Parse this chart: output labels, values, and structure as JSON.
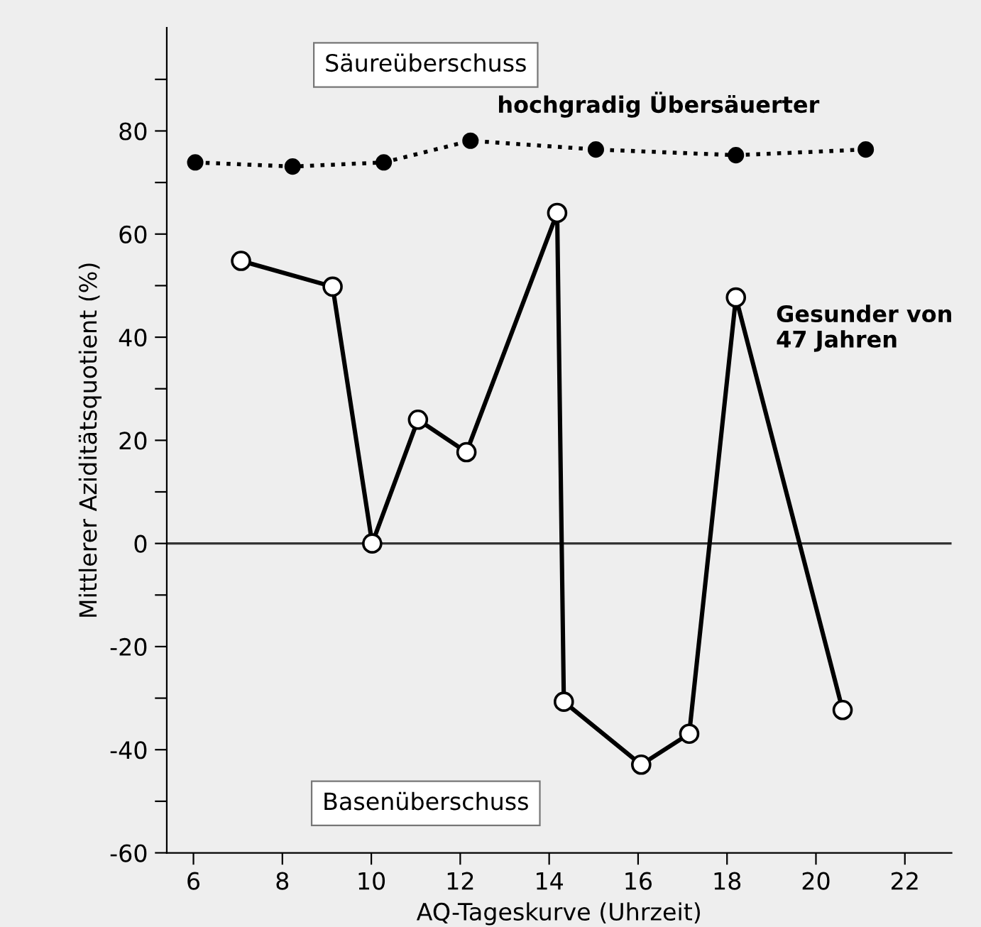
{
  "chart_data": {
    "type": "line",
    "xlabel": "AQ-Tageskurve (Uhrzeit)",
    "ylabel": "Mittlerer Aziditätsquotient (%)",
    "xlim": [
      5.4,
      23.05
    ],
    "xticks": [
      6,
      8,
      10,
      12,
      14,
      16,
      18,
      20,
      22
    ],
    "ylim": [
      -60,
      100
    ],
    "yticks": [
      -60,
      {
        "value": -50,
        "label": null
      },
      -40,
      {
        "value": -30,
        "label": null
      },
      -20,
      {
        "value": -10,
        "label": null
      },
      0,
      {
        "value": 10,
        "label": null
      },
      20,
      {
        "value": 30,
        "label": null
      },
      40,
      {
        "value": 50,
        "label": null
      },
      60,
      {
        "value": 70,
        "label": null
      },
      80,
      {
        "value": 90,
        "label": null
      }
    ],
    "grid": false,
    "legend": false,
    "marker": "circle",
    "series": [
      {
        "name": "hochgradig Übersäuerter",
        "color": "#000000",
        "line_style": "dotted",
        "x": [
          6.04,
          8.23,
          10.28,
          12.23,
          15.05,
          18.2,
          21.12
        ],
        "values": [
          73.9,
          73.1,
          73.9,
          78.1,
          76.4,
          75.3,
          76.4
        ]
      },
      {
        "name": "Gesunder von\n47 Jahren",
        "color": "#000000",
        "line_style": "solid",
        "x": [
          7.07,
          9.13,
          10.02,
          11.05,
          12.14,
          14.18,
          14.33,
          16.07,
          17.15,
          18.2,
          20.6
        ],
        "values": [
          54.8,
          49.8,
          0,
          24.0,
          17.7,
          64.1,
          -30.7,
          -42.9,
          -36.9,
          47.7,
          -32.3
        ]
      }
    ],
    "ref_lines": [
      {
        "axis": "y",
        "value": 0,
        "color": "#333333"
      }
    ],
    "annotations": [
      "Säureüberschuss",
      "Basenüberschuss"
    ]
  }
}
